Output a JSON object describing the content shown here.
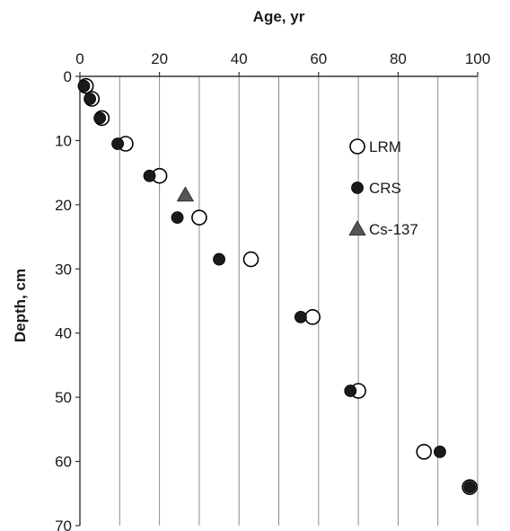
{
  "chart_data": {
    "type": "scatter",
    "xlabel": "Age, yr",
    "ylabel": "Depth, cm",
    "xlim": [
      0,
      100
    ],
    "ylim": [
      0,
      70
    ],
    "y_inverted": true,
    "x_axis_position": "top",
    "x_ticks": [
      0,
      20,
      40,
      60,
      80,
      100
    ],
    "y_ticks": [
      0,
      10,
      20,
      30,
      40,
      50,
      60,
      70
    ],
    "grid": "vertical",
    "legend_position": "right",
    "series": [
      {
        "name": "LRM",
        "marker": "open-circle",
        "color": "#000000",
        "points": [
          {
            "x": 1.5,
            "y": 1.5
          },
          {
            "x": 3,
            "y": 3.5
          },
          {
            "x": 5.5,
            "y": 6.5
          },
          {
            "x": 11.5,
            "y": 10.5
          },
          {
            "x": 20,
            "y": 15.5
          },
          {
            "x": 30,
            "y": 22
          },
          {
            "x": 43,
            "y": 28.5
          },
          {
            "x": 58.5,
            "y": 37.5
          },
          {
            "x": 70,
            "y": 49
          },
          {
            "x": 86.5,
            "y": 58.5
          },
          {
            "x": 98,
            "y": 64
          }
        ]
      },
      {
        "name": "CRS",
        "marker": "filled-circle",
        "color": "#1a1a1a",
        "points": [
          {
            "x": 1,
            "y": 1.5
          },
          {
            "x": 2.5,
            "y": 3.5
          },
          {
            "x": 5,
            "y": 6.5
          },
          {
            "x": 9.5,
            "y": 10.5
          },
          {
            "x": 17.5,
            "y": 15.5
          },
          {
            "x": 24.5,
            "y": 22
          },
          {
            "x": 35,
            "y": 28.5
          },
          {
            "x": 55.5,
            "y": 37.5
          },
          {
            "x": 68,
            "y": 49
          },
          {
            "x": 90.5,
            "y": 58.5
          },
          {
            "x": 98,
            "y": 64
          }
        ]
      },
      {
        "name": "Cs-137",
        "marker": "triangle",
        "color": "#555555",
        "points": [
          {
            "x": 26.5,
            "y": 18.5
          }
        ]
      }
    ]
  }
}
